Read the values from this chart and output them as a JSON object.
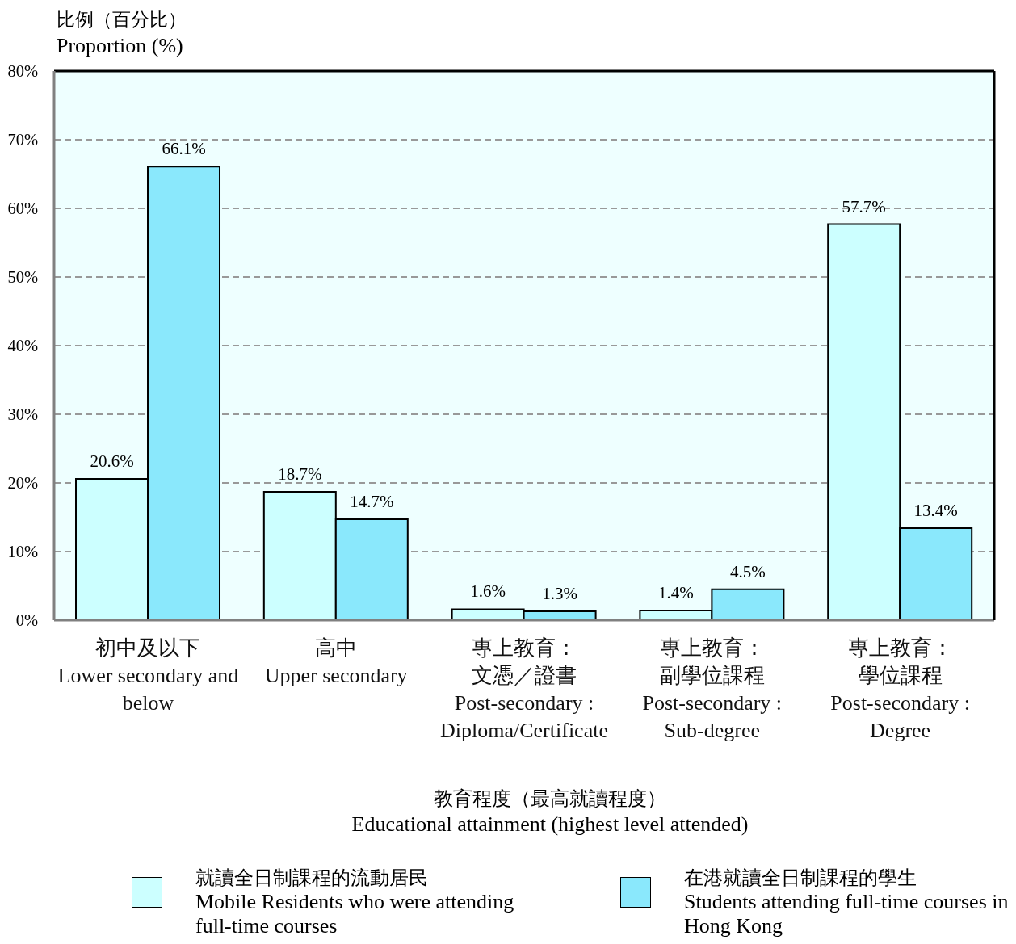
{
  "chart_data": {
    "type": "bar",
    "ylabel": "比例（百分比）\nProportion (%)",
    "xlabel": "教育程度（最高就讀程度）\nEducational attainment (highest level attended)",
    "categories": [
      "初中及以下\nLower secondary and\nbelow",
      "高中\nUpper secondary",
      "專上教育：文憑／證書\nPost-secondary :\nDiploma/Certificate",
      "專上教育：副學位課程\nPost-secondary :\nSub-degree",
      "專上教育：學位課程\nPost-secondary :\nDegree"
    ],
    "series": [
      {
        "name": "就讀全日制課程的流動居民\nMobile Residents who were attending full-time courses",
        "color": "#ccffff",
        "values": [
          20.6,
          18.7,
          1.6,
          1.4,
          57.7
        ],
        "value_labels": [
          "20.6%",
          "18.7%",
          "1.6%",
          "1.4%",
          "57.7%"
        ]
      },
      {
        "name": "在港就讀全日制課程的學生\nStudents attending full-time courses in Hong Kong",
        "color": "#8ae8fc",
        "values": [
          66.1,
          14.7,
          1.3,
          4.5,
          13.4
        ],
        "value_labels": [
          "66.1%",
          "14.7%",
          "1.3%",
          "4.5%",
          "13.4%"
        ]
      }
    ],
    "ylim": [
      0,
      80
    ],
    "yticks": [
      {
        "value": 0,
        "label": "0%"
      },
      {
        "value": 10,
        "label": "10%"
      },
      {
        "value": 20,
        "label": "20%"
      },
      {
        "value": 30,
        "label": "30%"
      },
      {
        "value": 40,
        "label": "40%"
      },
      {
        "value": 50,
        "label": "50%"
      },
      {
        "value": 60,
        "label": "60%"
      },
      {
        "value": 70,
        "label": "70%"
      },
      {
        "value": 80,
        "label": "80%"
      }
    ],
    "grid": "y",
    "legend": "bottom"
  }
}
